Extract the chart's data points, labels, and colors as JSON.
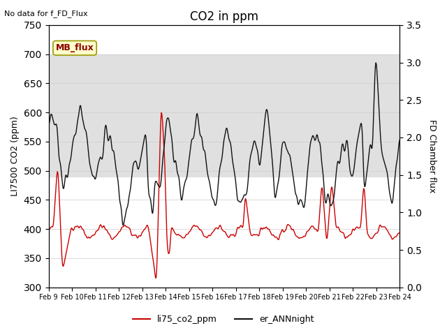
{
  "title": "CO2 in ppm",
  "note": "No data for f_FD_Flux",
  "ylabel_left": "LI7500 CO2 (ppm)",
  "ylabel_right": "FD Chamber flux",
  "ylim_left": [
    300,
    750
  ],
  "ylim_right": [
    0.0,
    3.5
  ],
  "shade_band": [
    490,
    700
  ],
  "shade_color": "#e0e0e0",
  "mb_flux_label": "MB_flux",
  "legend_labels": [
    "li75_co2_ppm",
    "er_ANNnight"
  ],
  "line_colors": [
    "#cc0000",
    "#111111"
  ],
  "background_color": "#ffffff",
  "grid_color": "#cccccc",
  "xtick_labels": [
    "Feb 9",
    "Feb 10",
    "Feb 11",
    "Feb 12",
    "Feb 13",
    "Feb 14",
    "Feb 15",
    "Feb 16",
    "Feb 17",
    "Feb 18",
    "Feb 19",
    "Feb 20",
    "Feb 21",
    "Feb 22",
    "Feb 23",
    "Feb 24"
  ],
  "n_days": 15,
  "pts_per_day": 48
}
